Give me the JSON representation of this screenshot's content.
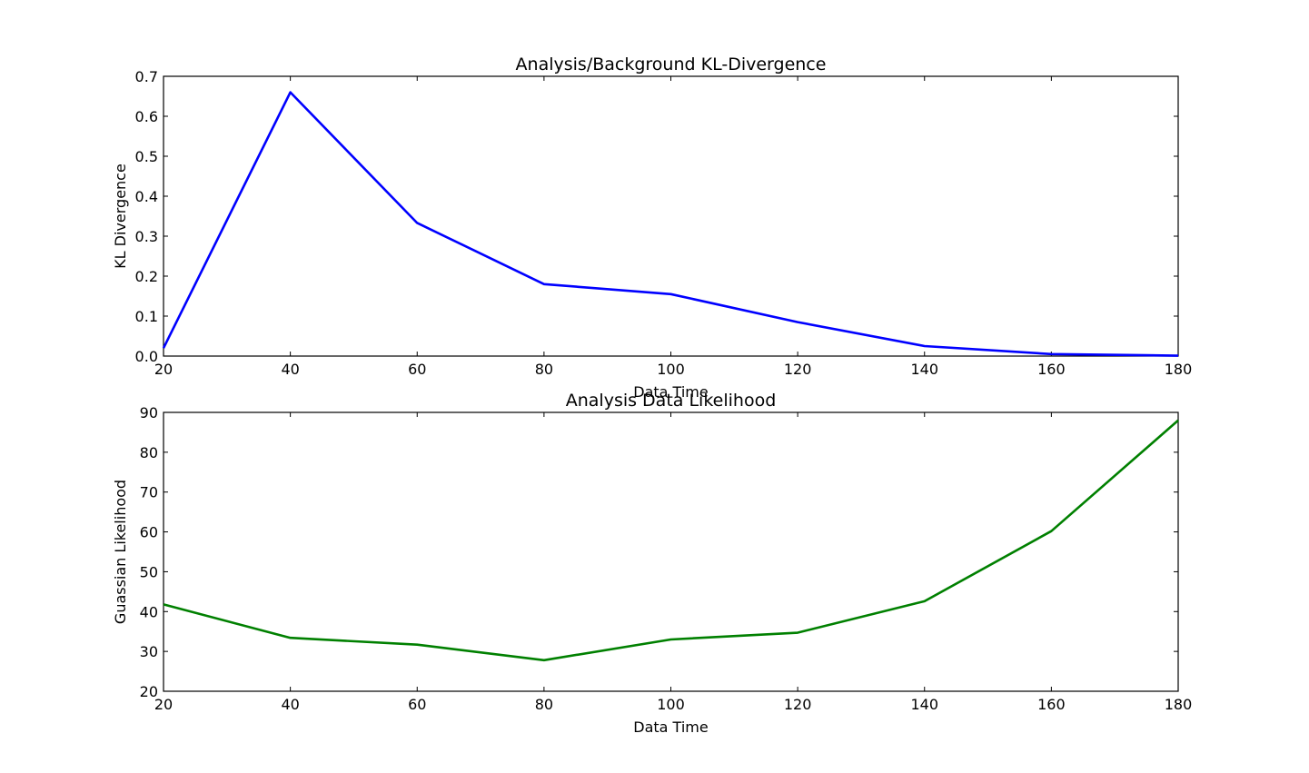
{
  "chart_data": [
    {
      "type": "line",
      "title": "Analysis/Background KL-Divergence",
      "xlabel": "Data Time",
      "ylabel": "KL Divergence",
      "xlim": [
        20,
        180
      ],
      "ylim": [
        0.0,
        0.7
      ],
      "x_ticks": [
        20,
        40,
        60,
        80,
        100,
        120,
        140,
        160,
        180
      ],
      "x_tick_labels": [
        "20",
        "40",
        "60",
        "80",
        "100",
        "120",
        "140",
        "160",
        "180"
      ],
      "y_ticks": [
        0.0,
        0.1,
        0.2,
        0.3,
        0.4,
        0.5,
        0.6,
        0.7
      ],
      "y_tick_labels": [
        "0.0",
        "0.1",
        "0.2",
        "0.3",
        "0.4",
        "0.5",
        "0.6",
        "0.7"
      ],
      "grid": false,
      "color": "#0000ff",
      "series": [
        {
          "x": [
            20,
            40,
            60,
            80,
            100,
            120,
            140,
            160,
            180
          ],
          "values": [
            0.02,
            0.66,
            0.333,
            0.18,
            0.155,
            0.085,
            0.025,
            0.005,
            0.001
          ]
        }
      ]
    },
    {
      "type": "line",
      "title": "Analysis Data Likelihood",
      "xlabel": "Data Time",
      "ylabel": "Guassian Likelihood",
      "xlim": [
        20,
        180
      ],
      "ylim": [
        20,
        90
      ],
      "x_ticks": [
        20,
        40,
        60,
        80,
        100,
        120,
        140,
        160,
        180
      ],
      "x_tick_labels": [
        "20",
        "40",
        "60",
        "80",
        "100",
        "120",
        "140",
        "160",
        "180"
      ],
      "y_ticks": [
        20,
        30,
        40,
        50,
        60,
        70,
        80,
        90
      ],
      "y_tick_labels": [
        "20",
        "30",
        "40",
        "50",
        "60",
        "70",
        "80",
        "90"
      ],
      "grid": false,
      "color": "#008000",
      "series": [
        {
          "x": [
            20,
            40,
            60,
            80,
            100,
            120,
            140,
            160,
            180
          ],
          "values": [
            41.8,
            33.4,
            31.7,
            27.8,
            33.0,
            34.7,
            42.6,
            60.2,
            88.0
          ]
        }
      ]
    }
  ]
}
